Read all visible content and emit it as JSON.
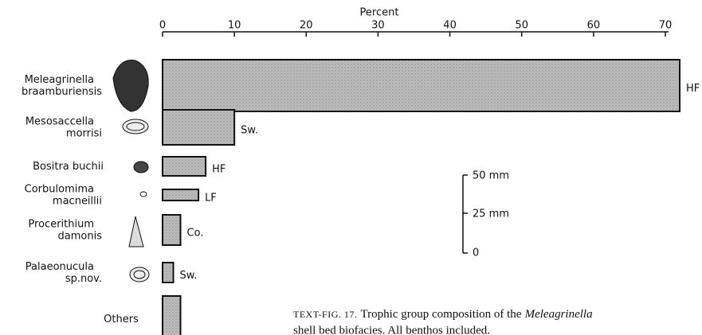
{
  "chart_data": {
    "type": "hbar",
    "x_label": "Percent",
    "categories": [
      [
        "Meleagrinella",
        "braamburiensis"
      ],
      [
        "Mesosaccella",
        "morrisi"
      ],
      [
        "Bositra buchii"
      ],
      [
        "Corbulomima",
        "macneillii"
      ],
      [
        "Procerithium",
        "damonis"
      ],
      [
        "Palaeonucula",
        "sp.nov."
      ],
      [
        "Others"
      ]
    ],
    "values": [
      72,
      10,
      6,
      5,
      2.5,
      1.5,
      2.5
    ],
    "value_labels": [
      "HF",
      "Sw.",
      "HF",
      "LF",
      "Co.",
      "Sw.",
      null
    ],
    "color": "#b9b9b9",
    "xlim": [
      0,
      70
    ],
    "xticks": [
      0,
      10,
      20,
      30,
      40,
      50,
      60,
      70
    ],
    "scale_bar": [
      "50 mm",
      "25 mm",
      "0"
    ],
    "caption": {
      "label": "TEXT-FIG. 17.",
      "text_1": "Trophic group composition of the",
      "italic": "Meleagrinella",
      "text_2": "shell bed biofacies. All benthos included."
    }
  }
}
